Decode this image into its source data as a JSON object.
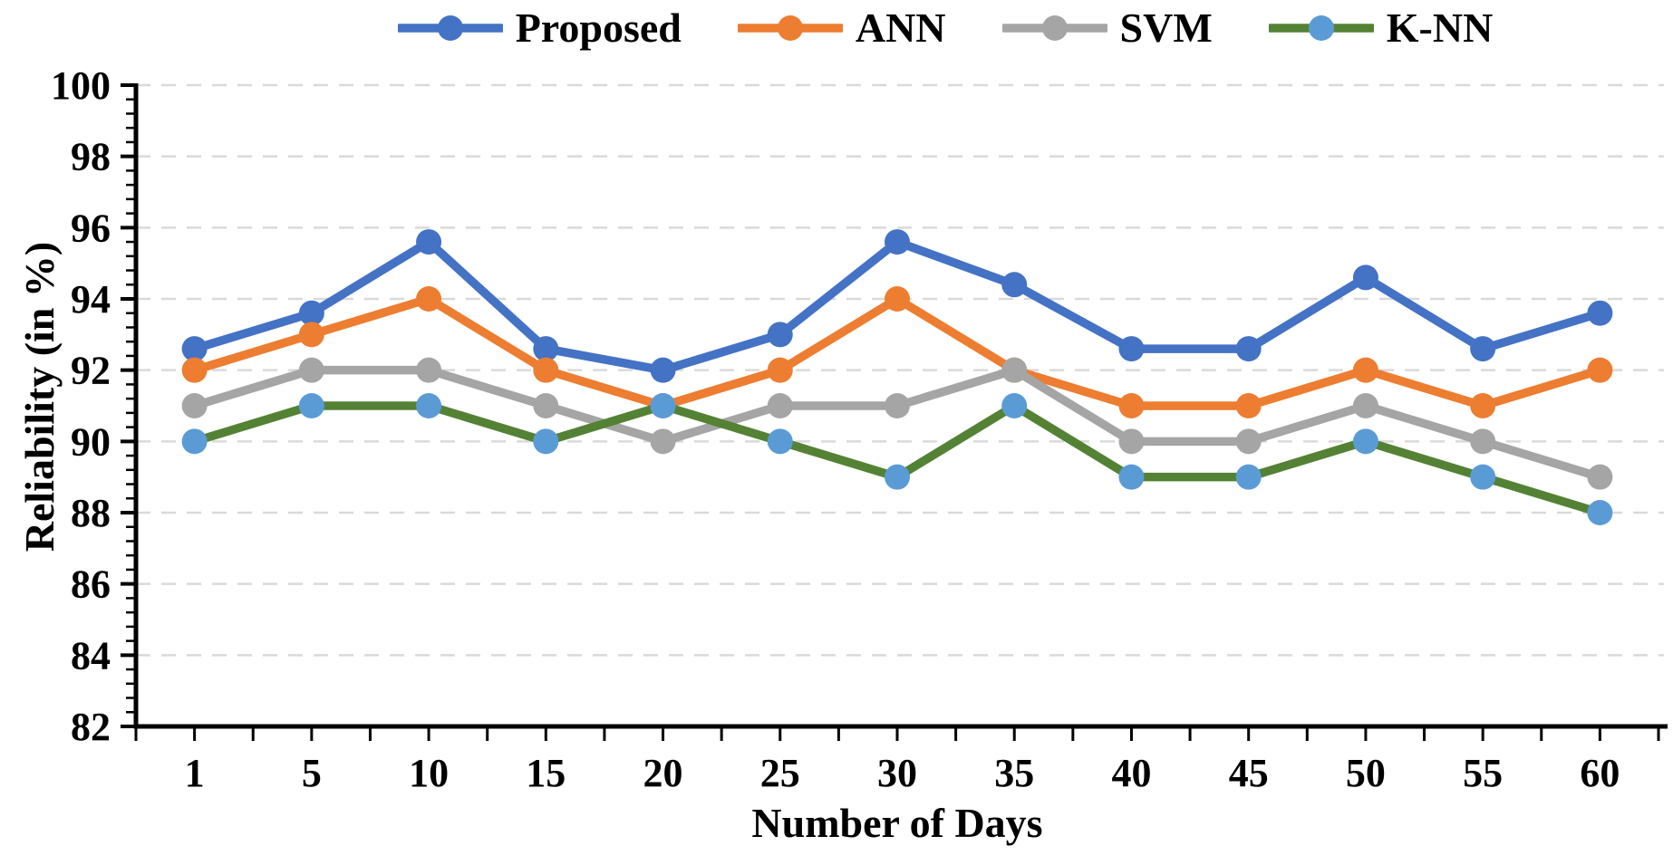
{
  "chart_data": {
    "type": "line",
    "title": "",
    "xlabel": "Number of Days",
    "ylabel": "Reliability (in %)",
    "categories": [
      1,
      5,
      10,
      15,
      20,
      25,
      30,
      35,
      40,
      45,
      50,
      55,
      60
    ],
    "ylim": [
      82,
      100
    ],
    "y_major_step": 2,
    "y_minor_step": 0.4,
    "y_tick_labels": [
      82,
      84,
      86,
      88,
      90,
      92,
      94,
      96,
      98,
      100
    ],
    "grid": "horizontal-dashed",
    "legend_position": "top-center",
    "series": [
      {
        "name": "Proposed",
        "color": "#4472C4",
        "marker_color": "#4472C4",
        "values": [
          92.6,
          93.6,
          95.6,
          92.6,
          92,
          93,
          95.6,
          94.4,
          92.6,
          92.6,
          94.6,
          92.6,
          93.6
        ]
      },
      {
        "name": "ANN",
        "color": "#ED7D31",
        "marker_color": "#ED7D31",
        "values": [
          92,
          93,
          94,
          92,
          91,
          92,
          94,
          92,
          91,
          91,
          92,
          91,
          92
        ]
      },
      {
        "name": "SVM",
        "color": "#A5A5A5",
        "marker_color": "#A5A5A5",
        "values": [
          91,
          92,
          92,
          91,
          90,
          91,
          91,
          92,
          90,
          90,
          91,
          90,
          89
        ]
      },
      {
        "name": "K-NN",
        "color": "#548235",
        "marker_color": "#5B9BD5",
        "values": [
          90,
          91,
          91,
          90,
          91,
          90,
          89,
          91,
          89,
          89,
          90,
          89,
          88
        ]
      }
    ],
    "colors": {
      "grid": "#D9D9D9",
      "axis": "#000000",
      "text": "#000000",
      "background": "#FFFFFF"
    }
  }
}
